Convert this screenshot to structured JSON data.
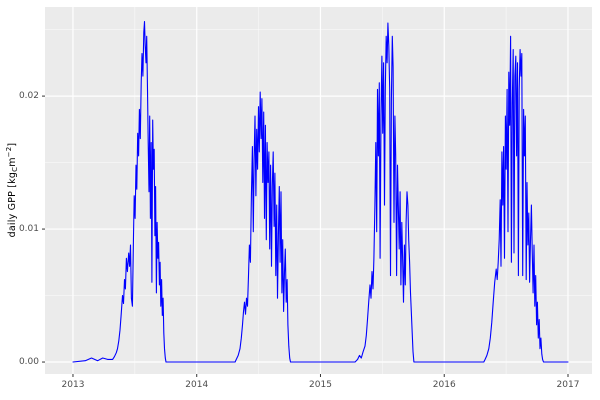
{
  "figure": {
    "background": "#FFFFFF",
    "panel_background": "#EBEBEB",
    "grid_major_color": "#FFFFFF",
    "grid_minor_color": "#FFFFFF",
    "line_color": "#0000FF",
    "tick_mark_color": "#333333",
    "tick_label_color": "#4D4D4D",
    "axis_title_color": "#000000"
  },
  "y_axis": {
    "title_parts": {
      "prefix": "daily GPP [kg",
      "sub": "C",
      "mid": "m",
      "sup": "−2",
      "suffix": "]"
    },
    "ticks": [
      {
        "value": 0.0,
        "label": "0.00"
      },
      {
        "value": 0.01,
        "label": "0.01"
      },
      {
        "value": 0.02,
        "label": "0.02"
      }
    ],
    "minor": [
      0.005,
      0.015,
      0.025
    ]
  },
  "x_axis": {
    "ticks": [
      {
        "value": 2013,
        "label": "2013"
      },
      {
        "value": 2014,
        "label": "2014"
      },
      {
        "value": 2015,
        "label": "2015"
      },
      {
        "value": 2016,
        "label": "2016"
      },
      {
        "value": 2017,
        "label": "2017"
      }
    ],
    "minor": [
      2013.5,
      2014.5,
      2015.5,
      2016.5
    ]
  },
  "chart_data": {
    "type": "line",
    "title": "",
    "xlabel": "",
    "ylabel": "daily GPP [kgC m⁻²]",
    "xlim": [
      2012.774,
      2017.194
    ],
    "ylim": [
      -0.0009,
      0.0267
    ],
    "grid": true,
    "legend": false,
    "series": [
      {
        "name": "daily GPP",
        "color": "#0000FF",
        "points": [
          [
            2013.0,
            0
          ],
          [
            2013.1,
            0.0001
          ],
          [
            2013.15,
            0.0003
          ],
          [
            2013.2,
            0.0001
          ],
          [
            2013.24,
            0.0003
          ],
          [
            2013.28,
            0.0002
          ],
          [
            2013.32,
            0.0002
          ],
          [
            2013.335,
            0.0004
          ],
          [
            2013.35,
            0.0007
          ],
          [
            2013.36,
            0.001
          ],
          [
            2013.37,
            0.0016
          ],
          [
            2013.38,
            0.0024
          ],
          [
            2013.39,
            0.0036
          ],
          [
            2013.4,
            0.005
          ],
          [
            2013.408,
            0.0044
          ],
          [
            2013.416,
            0.0062
          ],
          [
            2013.424,
            0.0055
          ],
          [
            2013.432,
            0.0078
          ],
          [
            2013.44,
            0.0068
          ],
          [
            2013.45,
            0.0082
          ],
          [
            2013.458,
            0.0072
          ],
          [
            2013.465,
            0.0088
          ],
          [
            2013.472,
            0.0048
          ],
          [
            2013.48,
            0.0042
          ],
          [
            2013.488,
            0.009
          ],
          [
            2013.495,
            0.0125
          ],
          [
            2013.502,
            0.0108
          ],
          [
            2013.509,
            0.0148
          ],
          [
            2013.516,
            0.013
          ],
          [
            2013.523,
            0.0172
          ],
          [
            2013.53,
            0.0155
          ],
          [
            2013.537,
            0.019
          ],
          [
            2013.544,
            0.0168
          ],
          [
            2013.551,
            0.021
          ],
          [
            2013.558,
            0.0232
          ],
          [
            2013.565,
            0.0215
          ],
          [
            2013.572,
            0.0248
          ],
          [
            2013.578,
            0.0256
          ],
          [
            2013.584,
            0.0238
          ],
          [
            2013.59,
            0.0225
          ],
          [
            2013.596,
            0.0245
          ],
          [
            2013.602,
            0.0205
          ],
          [
            2013.608,
            0.0165
          ],
          [
            2013.614,
            0.0128
          ],
          [
            2013.62,
            0.0185
          ],
          [
            2013.626,
            0.0108
          ],
          [
            2013.632,
            0.0165
          ],
          [
            2013.638,
            0.006
          ],
          [
            2013.644,
            0.0182
          ],
          [
            2013.65,
            0.0145
          ],
          [
            2013.656,
            0.016
          ],
          [
            2013.662,
            0.0095
          ],
          [
            2013.668,
            0.0132
          ],
          [
            2013.674,
            0.0052
          ],
          [
            2013.68,
            0.0105
          ],
          [
            2013.686,
            0.0078
          ],
          [
            2013.692,
            0.009
          ],
          [
            2013.698,
            0.0058
          ],
          [
            2013.704,
            0.0075
          ],
          [
            2013.71,
            0.0042
          ],
          [
            2013.716,
            0.0062
          ],
          [
            2013.722,
            0.0035
          ],
          [
            2013.728,
            0.0048
          ],
          [
            2013.734,
            0.0022
          ],
          [
            2013.74,
            0.001
          ],
          [
            2013.746,
            0.0003
          ],
          [
            2013.752,
            0
          ],
          [
            2013.9,
            0
          ],
          [
            2014.1,
            0
          ],
          [
            2014.31,
            0
          ],
          [
            2014.32,
            0.0002
          ],
          [
            2014.335,
            0.0005
          ],
          [
            2014.35,
            0.001
          ],
          [
            2014.36,
            0.0018
          ],
          [
            2014.37,
            0.0028
          ],
          [
            2014.378,
            0.0038
          ],
          [
            2014.386,
            0.0045
          ],
          [
            2014.394,
            0.0036
          ],
          [
            2014.402,
            0.0048
          ],
          [
            2014.41,
            0.0042
          ],
          [
            2014.418,
            0.0065
          ],
          [
            2014.426,
            0.0088
          ],
          [
            2014.434,
            0.0075
          ],
          [
            2014.442,
            0.0125
          ],
          [
            2014.45,
            0.0162
          ],
          [
            2014.457,
            0.0098
          ],
          [
            2014.464,
            0.0152
          ],
          [
            2014.471,
            0.0185
          ],
          [
            2014.478,
            0.0125
          ],
          [
            2014.485,
            0.0175
          ],
          [
            2014.492,
            0.0145
          ],
          [
            2014.499,
            0.0192
          ],
          [
            2014.506,
            0.0158
          ],
          [
            2014.513,
            0.0203
          ],
          [
            2014.52,
            0.0168
          ],
          [
            2014.527,
            0.0198
          ],
          [
            2014.534,
            0.0135
          ],
          [
            2014.541,
            0.0188
          ],
          [
            2014.548,
            0.0108
          ],
          [
            2014.555,
            0.0178
          ],
          [
            2014.562,
            0.0092
          ],
          [
            2014.569,
            0.0165
          ],
          [
            2014.576,
            0.0135
          ],
          [
            2014.583,
            0.0158
          ],
          [
            2014.59,
            0.0085
          ],
          [
            2014.597,
            0.0148
          ],
          [
            2014.604,
            0.0072
          ],
          [
            2014.611,
            0.0132
          ],
          [
            2014.618,
            0.0158
          ],
          [
            2014.625,
            0.0102
          ],
          [
            2014.632,
            0.0142
          ],
          [
            2014.639,
            0.0065
          ],
          [
            2014.646,
            0.0118
          ],
          [
            2014.653,
            0.0048
          ],
          [
            2014.66,
            0.0095
          ],
          [
            2014.667,
            0.0132
          ],
          [
            2014.674,
            0.0075
          ],
          [
            2014.681,
            0.0128
          ],
          [
            2014.688,
            0.0052
          ],
          [
            2014.695,
            0.0092
          ],
          [
            2014.702,
            0.0038
          ],
          [
            2014.709,
            0.0068
          ],
          [
            2014.716,
            0.0085
          ],
          [
            2014.723,
            0.0045
          ],
          [
            2014.73,
            0.0062
          ],
          [
            2014.737,
            0.0028
          ],
          [
            2014.744,
            0.0012
          ],
          [
            2014.751,
            0.0003
          ],
          [
            2014.758,
            0
          ],
          [
            2014.9,
            0
          ],
          [
            2015.1,
            0
          ],
          [
            2015.28,
            0
          ],
          [
            2015.3,
            0.0002
          ],
          [
            2015.315,
            0.0005
          ],
          [
            2015.33,
            0.0003
          ],
          [
            2015.345,
            0.0008
          ],
          [
            2015.36,
            0.0012
          ],
          [
            2015.37,
            0.002
          ],
          [
            2015.38,
            0.0032
          ],
          [
            2015.39,
            0.0045
          ],
          [
            2015.4,
            0.0058
          ],
          [
            2015.408,
            0.0048
          ],
          [
            2015.416,
            0.0068
          ],
          [
            2015.424,
            0.0055
          ],
          [
            2015.432,
            0.0078
          ],
          [
            2015.44,
            0.0118
          ],
          [
            2015.447,
            0.0165
          ],
          [
            2015.454,
            0.0098
          ],
          [
            2015.461,
            0.0205
          ],
          [
            2015.468,
            0.0155
          ],
          [
            2015.475,
            0.021
          ],
          [
            2015.482,
            0.0078
          ],
          [
            2015.489,
            0.0185
          ],
          [
            2015.496,
            0.023
          ],
          [
            2015.503,
            0.0172
          ],
          [
            2015.51,
            0.0225
          ],
          [
            2015.517,
            0.0118
          ],
          [
            2015.524,
            0.0205
          ],
          [
            2015.531,
            0.0245
          ],
          [
            2015.538,
            0.0225
          ],
          [
            2015.545,
            0.0255
          ],
          [
            2015.552,
            0.0238
          ],
          [
            2015.559,
            0.0205
          ],
          [
            2015.566,
            0.0065
          ],
          [
            2015.573,
            0.0198
          ],
          [
            2015.58,
            0.0245
          ],
          [
            2015.587,
            0.0222
          ],
          [
            2015.594,
            0.0105
          ],
          [
            2015.601,
            0.0185
          ],
          [
            2015.608,
            0.0155
          ],
          [
            2015.615,
            0.0065
          ],
          [
            2015.622,
            0.0148
          ],
          [
            2015.629,
            0.0118
          ],
          [
            2015.636,
            0.0085
          ],
          [
            2015.643,
            0.0128
          ],
          [
            2015.65,
            0.0058
          ],
          [
            2015.657,
            0.0105
          ],
          [
            2015.664,
            0.0075
          ],
          [
            2015.671,
            0.0045
          ],
          [
            2015.678,
            0.0088
          ],
          [
            2015.685,
            0.0058
          ],
          [
            2015.692,
            0.0105
          ],
          [
            2015.699,
            0.0128
          ],
          [
            2015.706,
            0.0118
          ],
          [
            2015.713,
            0.0092
          ],
          [
            2015.72,
            0.0075
          ],
          [
            2015.727,
            0.0052
          ],
          [
            2015.734,
            0.0038
          ],
          [
            2015.741,
            0.0022
          ],
          [
            2015.748,
            0.0008
          ],
          [
            2015.755,
            0
          ],
          [
            2015.9,
            0
          ],
          [
            2016.1,
            0
          ],
          [
            2016.32,
            0
          ],
          [
            2016.33,
            0.0002
          ],
          [
            2016.345,
            0.0005
          ],
          [
            2016.36,
            0.001
          ],
          [
            2016.372,
            0.0018
          ],
          [
            2016.384,
            0.003
          ],
          [
            2016.396,
            0.0045
          ],
          [
            2016.408,
            0.006
          ],
          [
            2016.42,
            0.007
          ],
          [
            2016.428,
            0.0062
          ],
          [
            2016.436,
            0.0075
          ],
          [
            2016.444,
            0.0092
          ],
          [
            2016.452,
            0.0122
          ],
          [
            2016.459,
            0.0072
          ],
          [
            2016.466,
            0.0158
          ],
          [
            2016.473,
            0.0118
          ],
          [
            2016.48,
            0.0162
          ],
          [
            2016.487,
            0.0078
          ],
          [
            2016.494,
            0.0185
          ],
          [
            2016.501,
            0.0145
          ],
          [
            2016.508,
            0.0205
          ],
          [
            2016.515,
            0.0098
          ],
          [
            2016.522,
            0.0218
          ],
          [
            2016.529,
            0.0178
          ],
          [
            2016.536,
            0.0245
          ],
          [
            2016.543,
            0.0075
          ],
          [
            2016.55,
            0.0195
          ],
          [
            2016.557,
            0.0235
          ],
          [
            2016.564,
            0.0082
          ],
          [
            2016.571,
            0.0215
          ],
          [
            2016.578,
            0.023
          ],
          [
            2016.585,
            0.0155
          ],
          [
            2016.592,
            0.0225
          ],
          [
            2016.599,
            0.0065
          ],
          [
            2016.606,
            0.0205
          ],
          [
            2016.613,
            0.0235
          ],
          [
            2016.62,
            0.0215
          ],
          [
            2016.627,
            0.0232
          ],
          [
            2016.634,
            0.0065
          ],
          [
            2016.641,
            0.019
          ],
          [
            2016.648,
            0.0155
          ],
          [
            2016.655,
            0.0185
          ],
          [
            2016.662,
            0.0062
          ],
          [
            2016.669,
            0.0135
          ],
          [
            2016.676,
            0.0088
          ],
          [
            2016.683,
            0.0112
          ],
          [
            2016.69,
            0.006
          ],
          [
            2016.697,
            0.0092
          ],
          [
            2016.704,
            0.0118
          ],
          [
            2016.711,
            0.0085
          ],
          [
            2016.718,
            0.0052
          ],
          [
            2016.725,
            0.0088
          ],
          [
            2016.732,
            0.0042
          ],
          [
            2016.739,
            0.0065
          ],
          [
            2016.746,
            0.0028
          ],
          [
            2016.753,
            0.0045
          ],
          [
            2016.76,
            0.0018
          ],
          [
            2016.767,
            0.0032
          ],
          [
            2016.774,
            0.001
          ],
          [
            2016.781,
            0.0018
          ],
          [
            2016.788,
            0.0006
          ],
          [
            2016.795,
            0.0002
          ],
          [
            2016.802,
            0
          ],
          [
            2016.9,
            0
          ],
          [
            2017.0,
            0
          ]
        ]
      }
    ]
  }
}
